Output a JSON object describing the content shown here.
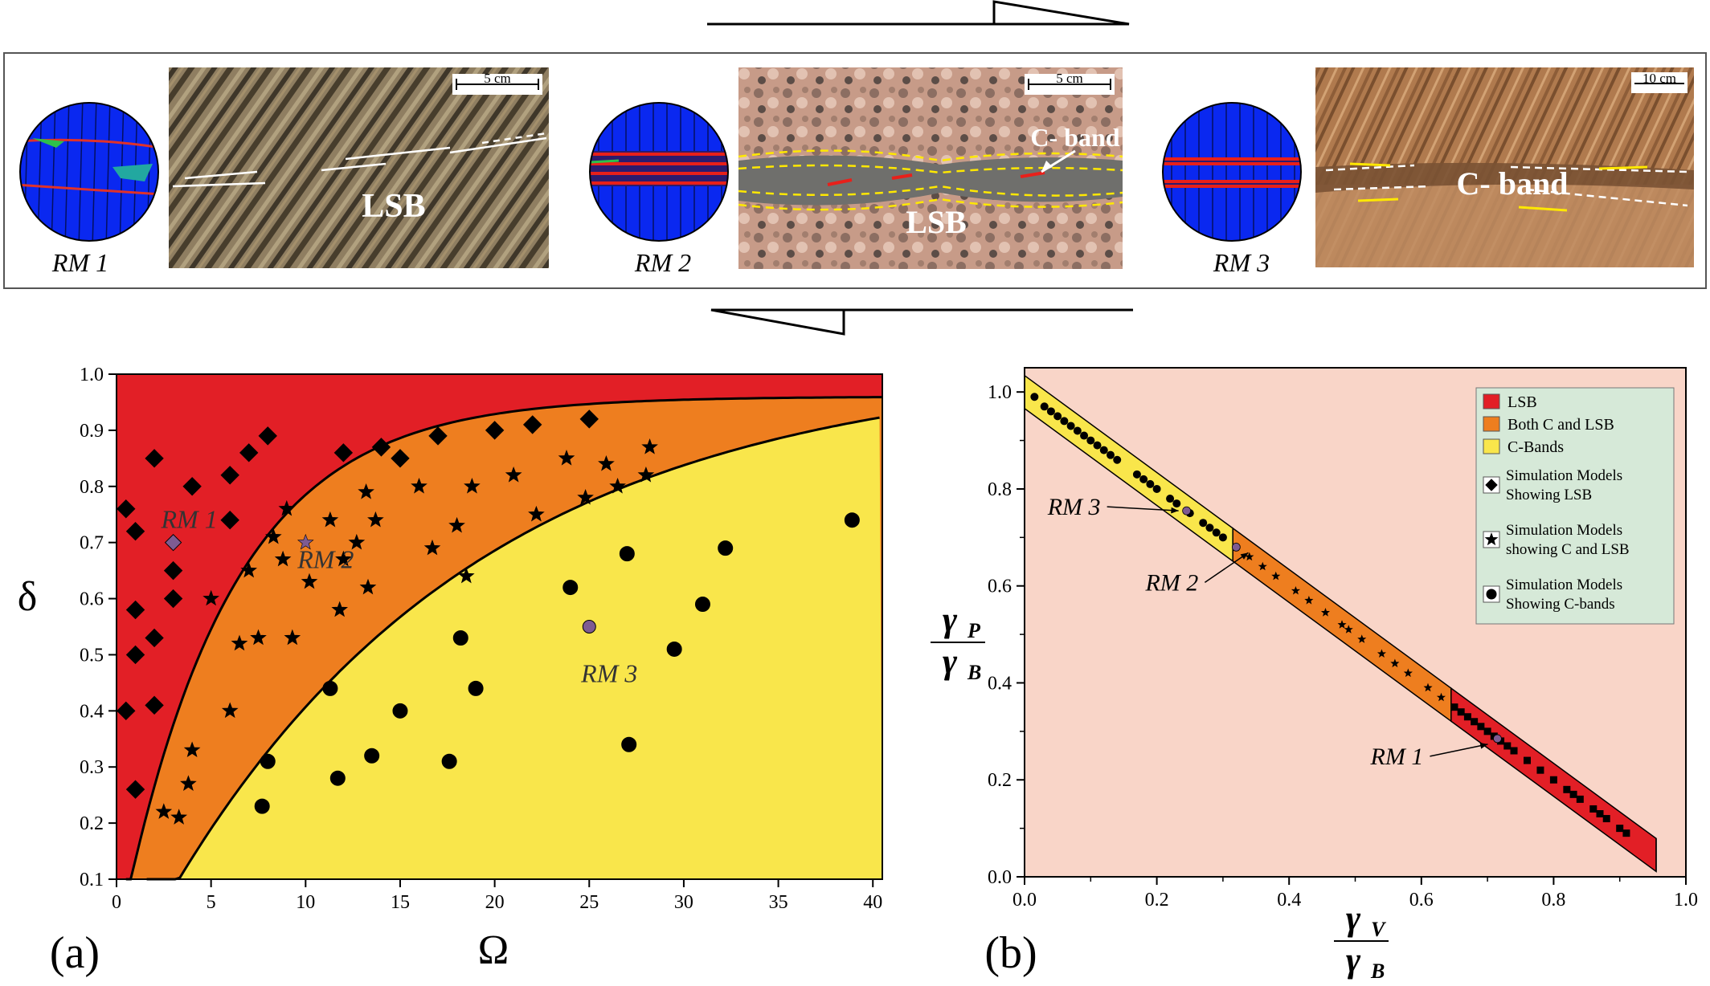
{
  "panel_top": {
    "models": [
      {
        "label": "RM 1",
        "band_text": "LSB",
        "scale": "5 cm"
      },
      {
        "label": "RM 2",
        "band_text": "LSB",
        "band_text2": "C- band",
        "scale": "5 cm"
      },
      {
        "label": "RM 3",
        "band_text": "C- band",
        "scale": "10 cm"
      }
    ]
  },
  "chart_data": [
    {
      "type": "scatter",
      "panel_label": "(a)",
      "xlabel": "Ω",
      "ylabel": "δ",
      "xlim": [
        0,
        40.5
      ],
      "ylim": [
        0.1,
        1.0
      ],
      "xticks": [
        0,
        5,
        10,
        15,
        20,
        25,
        30,
        35,
        40
      ],
      "yticks": [
        0.1,
        0.2,
        0.3,
        0.4,
        0.5,
        0.6,
        0.7,
        0.8,
        0.9,
        1.0
      ],
      "region_colors": {
        "LSB": "#e21f26",
        "Both C and LSB": "#ee7e1f",
        "C-Bands": "#f9e64b"
      },
      "series": [
        {
          "marker": "diamond",
          "points": [
            [
              0.5,
              0.76
            ],
            [
              0.5,
              0.4
            ],
            [
              1,
              0.72
            ],
            [
              1,
              0.58
            ],
            [
              1,
              0.5
            ],
            [
              1,
              0.26
            ],
            [
              2,
              0.85
            ],
            [
              2,
              0.53
            ],
            [
              2,
              0.41
            ],
            [
              3,
              0.65
            ],
            [
              3,
              0.6
            ],
            [
              4,
              0.8
            ],
            [
              6,
              0.82
            ],
            [
              6,
              0.74
            ],
            [
              7,
              0.86
            ],
            [
              8,
              0.89
            ],
            [
              12,
              0.86
            ],
            [
              14,
              0.87
            ],
            [
              15,
              0.85
            ],
            [
              17,
              0.89
            ],
            [
              20,
              0.9
            ],
            [
              22,
              0.91
            ],
            [
              25,
              0.92
            ]
          ]
        },
        {
          "marker": "star",
          "points": [
            [
              2.5,
              0.22
            ],
            [
              3.3,
              0.21
            ],
            [
              3.8,
              0.27
            ],
            [
              4,
              0.33
            ],
            [
              5,
              0.6
            ],
            [
              6,
              0.4
            ],
            [
              6.5,
              0.52
            ],
            [
              7,
              0.65
            ],
            [
              7.5,
              0.53
            ],
            [
              8.3,
              0.71
            ],
            [
              8.8,
              0.67
            ],
            [
              9,
              0.76
            ],
            [
              9.3,
              0.53
            ],
            [
              10.2,
              0.63
            ],
            [
              11.3,
              0.74
            ],
            [
              11.8,
              0.58
            ],
            [
              12,
              0.67
            ],
            [
              12.7,
              0.7
            ],
            [
              13.2,
              0.79
            ],
            [
              13.3,
              0.62
            ],
            [
              13.7,
              0.74
            ],
            [
              16,
              0.8
            ],
            [
              16.7,
              0.69
            ],
            [
              18,
              0.73
            ],
            [
              18.5,
              0.64
            ],
            [
              18.8,
              0.8
            ],
            [
              21,
              0.82
            ],
            [
              22.2,
              0.75
            ],
            [
              23.8,
              0.85
            ],
            [
              24.8,
              0.78
            ],
            [
              25.9,
              0.84
            ],
            [
              26.5,
              0.8
            ],
            [
              28,
              0.82
            ],
            [
              28.2,
              0.87
            ]
          ]
        },
        {
          "marker": "circle",
          "points": [
            [
              7.7,
              0.23
            ],
            [
              8,
              0.31
            ],
            [
              11.3,
              0.44
            ],
            [
              11.7,
              0.28
            ],
            [
              13.5,
              0.32
            ],
            [
              15,
              0.4
            ],
            [
              17.6,
              0.31
            ],
            [
              18.2,
              0.53
            ],
            [
              19,
              0.44
            ],
            [
              24,
              0.62
            ],
            [
              27,
              0.68
            ],
            [
              27.1,
              0.34
            ],
            [
              29.5,
              0.51
            ],
            [
              31,
              0.59
            ],
            [
              32.2,
              0.69
            ],
            [
              38.9,
              0.74
            ]
          ]
        }
      ],
      "rm_points": [
        {
          "label": "RM 1",
          "marker": "diamond",
          "x": 3,
          "y": 0.7
        },
        {
          "label": "RM 2",
          "marker": "star",
          "x": 10,
          "y": 0.7
        },
        {
          "label": "RM 3",
          "marker": "circle",
          "x": 25,
          "y": 0.55
        }
      ]
    },
    {
      "type": "scatter",
      "panel_label": "(b)",
      "xlabel_num": "γ",
      "xlabel_num_sub": "V",
      "xlabel_den": "γ",
      "xlabel_den_sub": "B",
      "ylabel_num": "γ",
      "ylabel_num_sub": "P",
      "ylabel_den": "γ",
      "ylabel_den_sub": "B",
      "xlim": [
        0,
        1.0
      ],
      "ylim": [
        0,
        1.05
      ],
      "xticks": [
        0.0,
        0.2,
        0.4,
        0.6,
        0.8,
        1.0
      ],
      "yticks": [
        0.0,
        0.2,
        0.4,
        0.6,
        0.8,
        1.0
      ],
      "xtick_labels": [
        "0.0",
        "0.2",
        "0.4",
        "0.6",
        "0.8",
        "1.0"
      ],
      "ytick_labels": [
        "0.0",
        "0.2",
        "0.4",
        "0.6",
        "0.8",
        "1.0"
      ],
      "background": "#f9d5c8",
      "band_segments": [
        {
          "name": "C-Bands",
          "x0": 0,
          "x1": 0.315,
          "color": "#f9e64b"
        },
        {
          "name": "Both C and LSB",
          "x0": 0.315,
          "x1": 0.645,
          "color": "#ee7e1f"
        },
        {
          "name": "LSB",
          "x0": 0.645,
          "x1": 0.955,
          "color": "#e21f26"
        }
      ],
      "series": [
        {
          "marker": "circle",
          "points": [
            [
              0.015,
              0.99
            ],
            [
              0.03,
              0.97
            ],
            [
              0.04,
              0.96
            ],
            [
              0.05,
              0.95
            ],
            [
              0.06,
              0.94
            ],
            [
              0.07,
              0.93
            ],
            [
              0.08,
              0.92
            ],
            [
              0.09,
              0.91
            ],
            [
              0.1,
              0.9
            ],
            [
              0.11,
              0.89
            ],
            [
              0.12,
              0.88
            ],
            [
              0.13,
              0.87
            ],
            [
              0.14,
              0.86
            ],
            [
              0.17,
              0.83
            ],
            [
              0.18,
              0.82
            ],
            [
              0.19,
              0.81
            ],
            [
              0.2,
              0.8
            ],
            [
              0.22,
              0.78
            ],
            [
              0.23,
              0.77
            ],
            [
              0.25,
              0.75
            ],
            [
              0.27,
              0.73
            ],
            [
              0.28,
              0.72
            ],
            [
              0.29,
              0.71
            ],
            [
              0.3,
              0.7
            ]
          ]
        },
        {
          "marker": "star",
          "points": [
            [
              0.32,
              0.68
            ],
            [
              0.34,
              0.66
            ],
            [
              0.36,
              0.64
            ],
            [
              0.38,
              0.62
            ],
            [
              0.41,
              0.59
            ],
            [
              0.43,
              0.57
            ],
            [
              0.455,
              0.545
            ],
            [
              0.48,
              0.52
            ],
            [
              0.49,
              0.51
            ],
            [
              0.51,
              0.49
            ],
            [
              0.54,
              0.46
            ],
            [
              0.56,
              0.44
            ],
            [
              0.58,
              0.42
            ],
            [
              0.61,
              0.39
            ],
            [
              0.63,
              0.37
            ]
          ]
        },
        {
          "marker": "square",
          "points": [
            [
              0.65,
              0.35
            ],
            [
              0.66,
              0.34
            ],
            [
              0.67,
              0.33
            ],
            [
              0.68,
              0.32
            ],
            [
              0.69,
              0.31
            ],
            [
              0.7,
              0.3
            ],
            [
              0.71,
              0.29
            ],
            [
              0.72,
              0.28
            ],
            [
              0.73,
              0.27
            ],
            [
              0.74,
              0.26
            ],
            [
              0.76,
              0.24
            ],
            [
              0.78,
              0.22
            ],
            [
              0.8,
              0.2
            ],
            [
              0.82,
              0.18
            ],
            [
              0.83,
              0.17
            ],
            [
              0.84,
              0.16
            ],
            [
              0.86,
              0.14
            ],
            [
              0.87,
              0.13
            ],
            [
              0.88,
              0.12
            ],
            [
              0.9,
              0.1
            ],
            [
              0.91,
              0.09
            ]
          ]
        }
      ],
      "rm_points": [
        {
          "label": "RM 3",
          "x": 0.245,
          "y": 0.755
        },
        {
          "label": "RM 2",
          "x": 0.32,
          "y": 0.68
        },
        {
          "label": "RM 1",
          "x": 0.715,
          "y": 0.285
        }
      ],
      "legend": {
        "placement": "top-right",
        "items": [
          {
            "label": "LSB",
            "swatch": "#e21f26"
          },
          {
            "label": "Both C and LSB",
            "swatch": "#ee7e1f"
          },
          {
            "label": "C-Bands",
            "swatch": "#f9e64b"
          },
          {
            "label": "Simulation Models",
            "label2": "Showing LSB",
            "marker": "diamond"
          },
          {
            "label": "Simulation Models",
            "label2": "showing C and LSB",
            "marker": "star"
          },
          {
            "label": "Simulation Models",
            "label2": "Showing C-bands",
            "marker": "circle"
          }
        ]
      }
    }
  ]
}
